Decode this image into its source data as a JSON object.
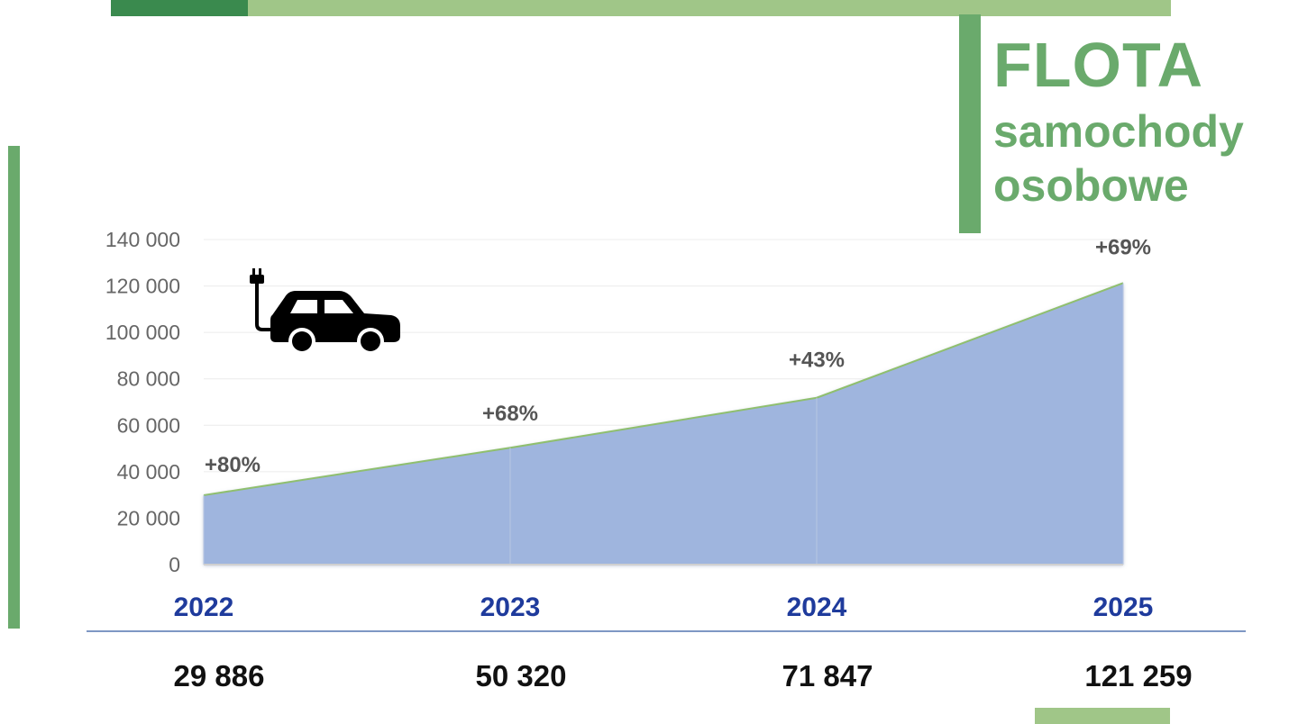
{
  "title": {
    "main": "FLOTA",
    "sub1": "samochody",
    "sub2": "osobowe"
  },
  "icons": {
    "car": "electric-car-icon"
  },
  "colors": {
    "accent_green": "#6aaa6c",
    "light_green": "#a0c688",
    "dark_green": "#3a8a4e",
    "area_fill": "#9fb5de",
    "year_blue": "#1f3b9c"
  },
  "chart_data": {
    "type": "area",
    "categories": [
      "2022",
      "2023",
      "2024",
      "2025"
    ],
    "values": [
      29886,
      50320,
      71847,
      121259
    ],
    "value_labels": [
      "29 886",
      "50 320",
      "71 847",
      "121 259"
    ],
    "growth_labels": [
      "+80%",
      "+68%",
      "+43%",
      "+69%"
    ],
    "ylim": [
      0,
      140000
    ],
    "yticks": [
      0,
      20000,
      40000,
      60000,
      80000,
      100000,
      120000,
      140000
    ],
    "ytick_labels": [
      "0",
      "20 000",
      "40 000",
      "60 000",
      "80 000",
      "100 000",
      "120 000",
      "140 000"
    ],
    "grid": true,
    "legend": "none"
  }
}
